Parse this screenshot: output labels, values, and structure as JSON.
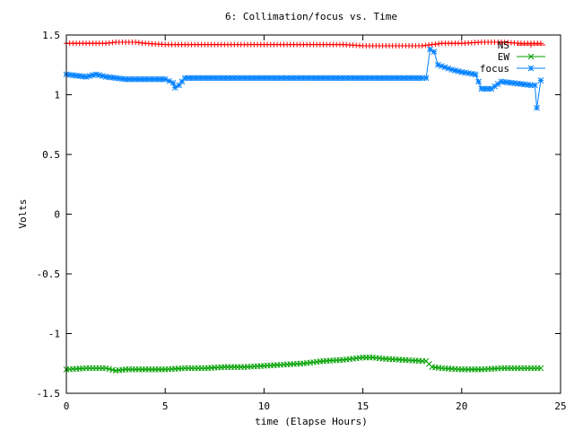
{
  "chart_data": {
    "type": "line",
    "title": "6: Collimation/focus vs. Time",
    "xlabel": "time (Elapse Hours)",
    "ylabel": "Volts",
    "xlim": [
      0,
      25
    ],
    "ylim": [
      -1.5,
      1.5
    ],
    "xticks": [
      0,
      5,
      10,
      15,
      20,
      25
    ],
    "xtick_labels": [
      "0",
      "5",
      "10",
      "15",
      "20",
      "25"
    ],
    "yticks": [
      -1.5,
      -1,
      -0.5,
      0,
      0.5,
      1,
      1.5
    ],
    "ytick_labels": [
      "-1.5",
      "-1",
      "-0.5",
      "0",
      "0.5",
      "1",
      "1.5"
    ],
    "legend_position": "top-right",
    "series": [
      {
        "name": "NS",
        "color": "#ff0000",
        "marker": "plus",
        "x": [
          0,
          1,
          2,
          2.5,
          3,
          3.5,
          4,
          5,
          6,
          7,
          8,
          9,
          10,
          11,
          12,
          13,
          14,
          15,
          16,
          17,
          18,
          18.5,
          19,
          20,
          21,
          22,
          23,
          24
        ],
        "y": [
          1.43,
          1.43,
          1.43,
          1.44,
          1.44,
          1.44,
          1.43,
          1.42,
          1.42,
          1.42,
          1.42,
          1.42,
          1.42,
          1.42,
          1.42,
          1.42,
          1.42,
          1.41,
          1.41,
          1.41,
          1.41,
          1.42,
          1.43,
          1.43,
          1.44,
          1.44,
          1.43,
          1.43
        ]
      },
      {
        "name": "EW",
        "color": "#00a000",
        "marker": "x",
        "x": [
          0,
          1,
          2,
          2.5,
          3,
          4,
          5,
          6,
          7,
          8,
          9,
          10,
          11,
          12,
          13,
          14,
          15,
          15.5,
          16,
          17,
          18,
          18.2,
          18.5,
          19,
          20,
          21,
          22,
          23,
          24
        ],
        "y": [
          -1.3,
          -1.29,
          -1.29,
          -1.31,
          -1.3,
          -1.3,
          -1.3,
          -1.29,
          -1.29,
          -1.28,
          -1.28,
          -1.27,
          -1.26,
          -1.25,
          -1.23,
          -1.22,
          -1.2,
          -1.2,
          -1.21,
          -1.22,
          -1.23,
          -1.23,
          -1.28,
          -1.29,
          -1.3,
          -1.3,
          -1.29,
          -1.29,
          -1.29
        ]
      },
      {
        "name": "focus",
        "color": "#0080ff",
        "marker": "star",
        "x": [
          0,
          0.5,
          1,
          1.5,
          2,
          3,
          4,
          5,
          5.4,
          5.5,
          5.7,
          6,
          7,
          8,
          9,
          10,
          11,
          12,
          13,
          14,
          15,
          16,
          17,
          18,
          18.2,
          18.4,
          18.6,
          18.8,
          19.5,
          20,
          20.7,
          21,
          21.5,
          22,
          22.5,
          23,
          23.5,
          23.7,
          23.8,
          24
        ],
        "y": [
          1.17,
          1.16,
          1.15,
          1.17,
          1.15,
          1.13,
          1.13,
          1.13,
          1.1,
          1.06,
          1.08,
          1.14,
          1.14,
          1.14,
          1.14,
          1.14,
          1.14,
          1.14,
          1.14,
          1.14,
          1.14,
          1.14,
          1.14,
          1.14,
          1.14,
          1.38,
          1.36,
          1.25,
          1.21,
          1.19,
          1.17,
          1.05,
          1.05,
          1.11,
          1.1,
          1.09,
          1.08,
          1.08,
          0.89,
          1.12
        ]
      }
    ]
  }
}
